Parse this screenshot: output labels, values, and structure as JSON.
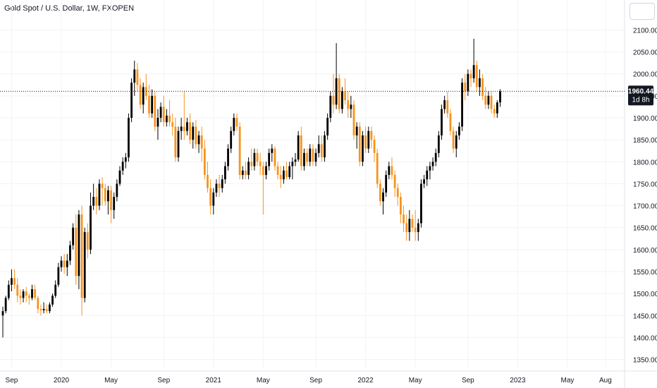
{
  "title": "Gold Spot / U.S. Dollar, 1W, FXOPEN",
  "chart_data": {
    "type": "candlestick",
    "title": "Gold Spot / U.S. Dollar, 1W, FXOPEN",
    "ylim": [
      1330,
      2120
    ],
    "y_ticks": [
      "2100.00",
      "2050.00",
      "2000.00",
      "1950.00",
      "1900.00",
      "1850.00",
      "1800.00",
      "1750.00",
      "1700.00",
      "1650.00",
      "1600.00",
      "1550.00",
      "1500.00",
      "1450.00",
      "1400.00",
      "1350.00"
    ],
    "y_tick_values": [
      2100,
      2050,
      2000,
      1950,
      1900,
      1850,
      1800,
      1750,
      1700,
      1650,
      1600,
      1550,
      1500,
      1450,
      1400,
      1350
    ],
    "x_ticks": [
      {
        "label": "Sep",
        "week": 3
      },
      {
        "label": "2020",
        "week": 20
      },
      {
        "label": "May",
        "week": 37
      },
      {
        "label": "Sep",
        "week": 55
      },
      {
        "label": "2021",
        "week": 72
      },
      {
        "label": "May",
        "week": 89
      },
      {
        "label": "Sep",
        "week": 107
      },
      {
        "label": "2022",
        "week": 124
      },
      {
        "label": "May",
        "week": 141
      },
      {
        "label": "Sep",
        "week": 159
      },
      {
        "label": "2023",
        "week": 176
      },
      {
        "label": "May",
        "week": 193
      },
      {
        "label": "Aug",
        "week": 206
      }
    ],
    "grid": true,
    "current_price": {
      "label": "1960.44",
      "value": 1960.44,
      "countdown": "1d 8h"
    },
    "up_color": "#000000",
    "down_color": "#f7931e",
    "candles": [
      [
        1450,
        1470,
        1400,
        1460
      ],
      [
        1460,
        1495,
        1455,
        1490
      ],
      [
        1490,
        1530,
        1485,
        1520
      ],
      [
        1520,
        1555,
        1505,
        1535
      ],
      [
        1535,
        1555,
        1510,
        1520
      ],
      [
        1520,
        1535,
        1480,
        1495
      ],
      [
        1495,
        1510,
        1475,
        1490
      ],
      [
        1490,
        1510,
        1480,
        1505
      ],
      [
        1505,
        1515,
        1480,
        1495
      ],
      [
        1495,
        1500,
        1475,
        1490
      ],
      [
        1490,
        1520,
        1485,
        1510
      ],
      [
        1510,
        1520,
        1485,
        1490
      ],
      [
        1490,
        1495,
        1455,
        1465
      ],
      [
        1465,
        1475,
        1450,
        1462
      ],
      [
        1462,
        1480,
        1455,
        1465
      ],
      [
        1465,
        1475,
        1455,
        1460
      ],
      [
        1460,
        1480,
        1455,
        1475
      ],
      [
        1475,
        1500,
        1470,
        1495
      ],
      [
        1495,
        1530,
        1490,
        1520
      ],
      [
        1520,
        1570,
        1515,
        1560
      ],
      [
        1560,
        1585,
        1550,
        1575
      ],
      [
        1575,
        1590,
        1545,
        1560
      ],
      [
        1560,
        1590,
        1540,
        1575
      ],
      [
        1575,
        1620,
        1565,
        1610
      ],
      [
        1610,
        1660,
        1600,
        1650
      ],
      [
        1650,
        1680,
        1520,
        1540
      ],
      [
        1540,
        1690,
        1510,
        1680
      ],
      [
        1680,
        1700,
        1450,
        1490
      ],
      [
        1490,
        1650,
        1480,
        1640
      ],
      [
        1640,
        1660,
        1580,
        1600
      ],
      [
        1600,
        1730,
        1590,
        1700
      ],
      [
        1700,
        1750,
        1690,
        1720
      ],
      [
        1720,
        1740,
        1680,
        1700
      ],
      [
        1700,
        1760,
        1690,
        1750
      ],
      [
        1750,
        1765,
        1700,
        1740
      ],
      [
        1740,
        1750,
        1700,
        1710
      ],
      [
        1710,
        1745,
        1680,
        1735
      ],
      [
        1735,
        1745,
        1660,
        1690
      ],
      [
        1690,
        1730,
        1670,
        1720
      ],
      [
        1720,
        1760,
        1710,
        1750
      ],
      [
        1750,
        1790,
        1745,
        1780
      ],
      [
        1780,
        1810,
        1770,
        1800
      ],
      [
        1800,
        1820,
        1785,
        1810
      ],
      [
        1810,
        1910,
        1800,
        1900
      ],
      [
        1900,
        1990,
        1890,
        1980
      ],
      [
        1980,
        2030,
        1950,
        2010
      ],
      [
        2010,
        2025,
        1960,
        1975
      ],
      [
        1975,
        1990,
        1920,
        1930
      ],
      [
        1930,
        1980,
        1910,
        1970
      ],
      [
        1970,
        2000,
        1940,
        1950
      ],
      [
        1950,
        1975,
        1900,
        1910
      ],
      [
        1910,
        1965,
        1900,
        1950
      ],
      [
        1950,
        1960,
        1870,
        1880
      ],
      [
        1880,
        1920,
        1850,
        1900
      ],
      [
        1900,
        1935,
        1890,
        1925
      ],
      [
        1925,
        1950,
        1880,
        1890
      ],
      [
        1890,
        1920,
        1880,
        1905
      ],
      [
        1905,
        1940,
        1880,
        1890
      ],
      [
        1890,
        1910,
        1860,
        1880
      ],
      [
        1880,
        1900,
        1800,
        1810
      ],
      [
        1810,
        1880,
        1800,
        1870
      ],
      [
        1870,
        1900,
        1850,
        1880
      ],
      [
        1880,
        1960,
        1850,
        1870
      ],
      [
        1870,
        1900,
        1860,
        1890
      ],
      [
        1890,
        1910,
        1840,
        1850
      ],
      [
        1850,
        1890,
        1830,
        1880
      ],
      [
        1880,
        1895,
        1830,
        1840
      ],
      [
        1840,
        1870,
        1820,
        1860
      ],
      [
        1860,
        1880,
        1800,
        1830
      ],
      [
        1830,
        1850,
        1760,
        1770
      ],
      [
        1770,
        1800,
        1730,
        1740
      ],
      [
        1740,
        1760,
        1680,
        1700
      ],
      [
        1700,
        1740,
        1680,
        1730
      ],
      [
        1730,
        1760,
        1720,
        1750
      ],
      [
        1750,
        1770,
        1720,
        1740
      ],
      [
        1740,
        1770,
        1730,
        1760
      ],
      [
        1760,
        1800,
        1750,
        1790
      ],
      [
        1790,
        1840,
        1780,
        1830
      ],
      [
        1830,
        1880,
        1820,
        1870
      ],
      [
        1870,
        1910,
        1860,
        1900
      ],
      [
        1900,
        1910,
        1870,
        1880
      ],
      [
        1880,
        1890,
        1760,
        1770
      ],
      [
        1770,
        1790,
        1760,
        1780
      ],
      [
        1780,
        1800,
        1760,
        1770
      ],
      [
        1770,
        1810,
        1760,
        1800
      ],
      [
        1800,
        1830,
        1780,
        1790
      ],
      [
        1790,
        1830,
        1780,
        1820
      ],
      [
        1820,
        1830,
        1790,
        1800
      ],
      [
        1800,
        1820,
        1770,
        1790
      ],
      [
        1790,
        1800,
        1680,
        1770
      ],
      [
        1770,
        1800,
        1760,
        1790
      ],
      [
        1790,
        1830,
        1780,
        1820
      ],
      [
        1820,
        1840,
        1800,
        1830
      ],
      [
        1830,
        1835,
        1780,
        1790
      ],
      [
        1790,
        1800,
        1760,
        1770
      ],
      [
        1770,
        1790,
        1740,
        1760
      ],
      [
        1760,
        1790,
        1750,
        1780
      ],
      [
        1780,
        1800,
        1760,
        1765
      ],
      [
        1765,
        1800,
        1760,
        1790
      ],
      [
        1790,
        1810,
        1760,
        1800
      ],
      [
        1800,
        1820,
        1790,
        1805
      ],
      [
        1805,
        1870,
        1800,
        1860
      ],
      [
        1860,
        1880,
        1780,
        1790
      ],
      [
        1790,
        1830,
        1780,
        1820
      ],
      [
        1820,
        1830,
        1790,
        1800
      ],
      [
        1800,
        1840,
        1790,
        1830
      ],
      [
        1830,
        1840,
        1790,
        1800
      ],
      [
        1800,
        1830,
        1790,
        1820
      ],
      [
        1820,
        1860,
        1810,
        1840
      ],
      [
        1840,
        1860,
        1800,
        1810
      ],
      [
        1810,
        1870,
        1800,
        1860
      ],
      [
        1860,
        1910,
        1850,
        1900
      ],
      [
        1900,
        1960,
        1890,
        1950
      ],
      [
        1950,
        2000,
        1910,
        1930
      ],
      [
        1930,
        2070,
        1920,
        1990
      ],
      [
        1990,
        2000,
        1910,
        1920
      ],
      [
        1920,
        1970,
        1910,
        1960
      ],
      [
        1960,
        1990,
        1930,
        1940
      ],
      [
        1940,
        1960,
        1900,
        1920
      ],
      [
        1920,
        1950,
        1900,
        1930
      ],
      [
        1930,
        1940,
        1850,
        1860
      ],
      [
        1860,
        1890,
        1830,
        1880
      ],
      [
        1880,
        1890,
        1790,
        1800
      ],
      [
        1800,
        1870,
        1790,
        1860
      ],
      [
        1860,
        1880,
        1820,
        1830
      ],
      [
        1830,
        1880,
        1820,
        1870
      ],
      [
        1870,
        1880,
        1830,
        1850
      ],
      [
        1850,
        1860,
        1800,
        1820
      ],
      [
        1820,
        1830,
        1740,
        1750
      ],
      [
        1750,
        1760,
        1700,
        1710
      ],
      [
        1710,
        1740,
        1680,
        1730
      ],
      [
        1730,
        1780,
        1720,
        1770
      ],
      [
        1770,
        1800,
        1760,
        1790
      ],
      [
        1790,
        1810,
        1760,
        1770
      ],
      [
        1770,
        1780,
        1720,
        1740
      ],
      [
        1740,
        1750,
        1700,
        1720
      ],
      [
        1720,
        1730,
        1660,
        1680
      ],
      [
        1680,
        1700,
        1640,
        1660
      ],
      [
        1660,
        1680,
        1620,
        1640
      ],
      [
        1640,
        1690,
        1620,
        1670
      ],
      [
        1670,
        1680,
        1640,
        1650
      ],
      [
        1650,
        1690,
        1620,
        1640
      ],
      [
        1640,
        1670,
        1620,
        1660
      ],
      [
        1660,
        1760,
        1650,
        1750
      ],
      [
        1750,
        1770,
        1740,
        1760
      ],
      [
        1760,
        1790,
        1745,
        1780
      ],
      [
        1780,
        1800,
        1760,
        1790
      ],
      [
        1790,
        1810,
        1780,
        1800
      ],
      [
        1800,
        1830,
        1790,
        1820
      ],
      [
        1820,
        1870,
        1810,
        1860
      ],
      [
        1860,
        1930,
        1850,
        1920
      ],
      [
        1920,
        1950,
        1910,
        1940
      ],
      [
        1940,
        1960,
        1900,
        1910
      ],
      [
        1910,
        1920,
        1860,
        1870
      ],
      [
        1870,
        1880,
        1820,
        1830
      ],
      [
        1830,
        1870,
        1810,
        1860
      ],
      [
        1860,
        1890,
        1850,
        1880
      ],
      [
        1880,
        1990,
        1870,
        1980
      ],
      [
        1980,
        2000,
        1940,
        1960
      ],
      [
        1960,
        2010,
        1950,
        2000
      ],
      [
        2000,
        2010,
        1970,
        1990
      ],
      [
        1990,
        2080,
        1980,
        2020
      ],
      [
        2020,
        2030,
        1960,
        1970
      ],
      [
        1970,
        2010,
        1950,
        1990
      ],
      [
        1990,
        2000,
        1940,
        1950
      ],
      [
        1950,
        1970,
        1920,
        1930
      ],
      [
        1930,
        1960,
        1920,
        1950
      ],
      [
        1950,
        1960,
        1910,
        1920
      ],
      [
        1920,
        1930,
        1900,
        1910
      ],
      [
        1910,
        1940,
        1900,
        1935
      ],
      [
        1935,
        1965,
        1925,
        1960
      ]
    ]
  }
}
